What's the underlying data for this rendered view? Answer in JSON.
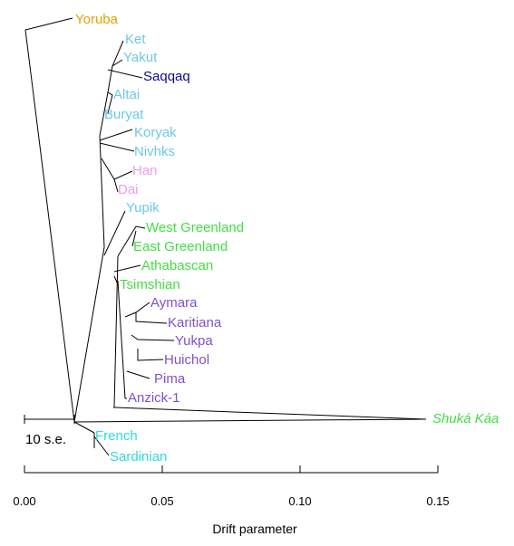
{
  "figure": {
    "x_axis": {
      "title": "Drift parameter",
      "ticks": [
        "0.00",
        "0.05",
        "0.10",
        "0.15"
      ]
    },
    "scale_bar": {
      "label": "10 s.e."
    }
  },
  "tips": [
    {
      "id": "yoruba",
      "label": "Yoruba",
      "color": "#E8A000",
      "italic": false
    },
    {
      "id": "ket",
      "label": "Ket",
      "color": "#6CC8E8",
      "italic": false
    },
    {
      "id": "yakut",
      "label": "Yakut",
      "color": "#6CC8E8",
      "italic": false
    },
    {
      "id": "saqqaq",
      "label": "Saqqaq",
      "color": "#0A0A96",
      "italic": false
    },
    {
      "id": "altai",
      "label": "Altai",
      "color": "#6CC8E8",
      "italic": false
    },
    {
      "id": "buryat",
      "label": "Buryat",
      "color": "#6CC8E8",
      "italic": false
    },
    {
      "id": "koryak",
      "label": "Koryak",
      "color": "#6CC8E8",
      "italic": false
    },
    {
      "id": "nivhks",
      "label": "Nivhks",
      "color": "#6CC8E8",
      "italic": false
    },
    {
      "id": "han",
      "label": "Han",
      "color": "#EE9EEE",
      "italic": false
    },
    {
      "id": "dai",
      "label": "Dai",
      "color": "#EE9EEE",
      "italic": false
    },
    {
      "id": "yupik",
      "label": "Yupik",
      "color": "#6CC8E8",
      "italic": false
    },
    {
      "id": "west-greenland",
      "label": "West Greenland",
      "color": "#44DD44",
      "italic": false
    },
    {
      "id": "east-greenland",
      "label": "East Greenland",
      "color": "#44DD44",
      "italic": false
    },
    {
      "id": "athabascan",
      "label": "Athabascan",
      "color": "#44DD44",
      "italic": false
    },
    {
      "id": "tsimshian",
      "label": "Tsimshian",
      "color": "#44DD44",
      "italic": false
    },
    {
      "id": "aymara",
      "label": "Aymara",
      "color": "#8050D0",
      "italic": false
    },
    {
      "id": "karitiana",
      "label": "Karitiana",
      "color": "#8050D0",
      "italic": false
    },
    {
      "id": "yukpa",
      "label": "Yukpa",
      "color": "#8050D0",
      "italic": false
    },
    {
      "id": "huichol",
      "label": "Huichol",
      "color": "#8050D0",
      "italic": false
    },
    {
      "id": "pima",
      "label": "Pima",
      "color": "#8050D0",
      "italic": false
    },
    {
      "id": "anzick-1",
      "label": "Anzick-1",
      "color": "#8050D0",
      "italic": false
    },
    {
      "id": "shuka-kaa",
      "label": "Shuká Káa",
      "color": "#44DD44",
      "italic": true
    },
    {
      "id": "french",
      "label": "French",
      "color": "#33D8E0",
      "italic": false
    },
    {
      "id": "sardinian",
      "label": "Sardinian",
      "color": "#33D8E0",
      "italic": false
    }
  ]
}
